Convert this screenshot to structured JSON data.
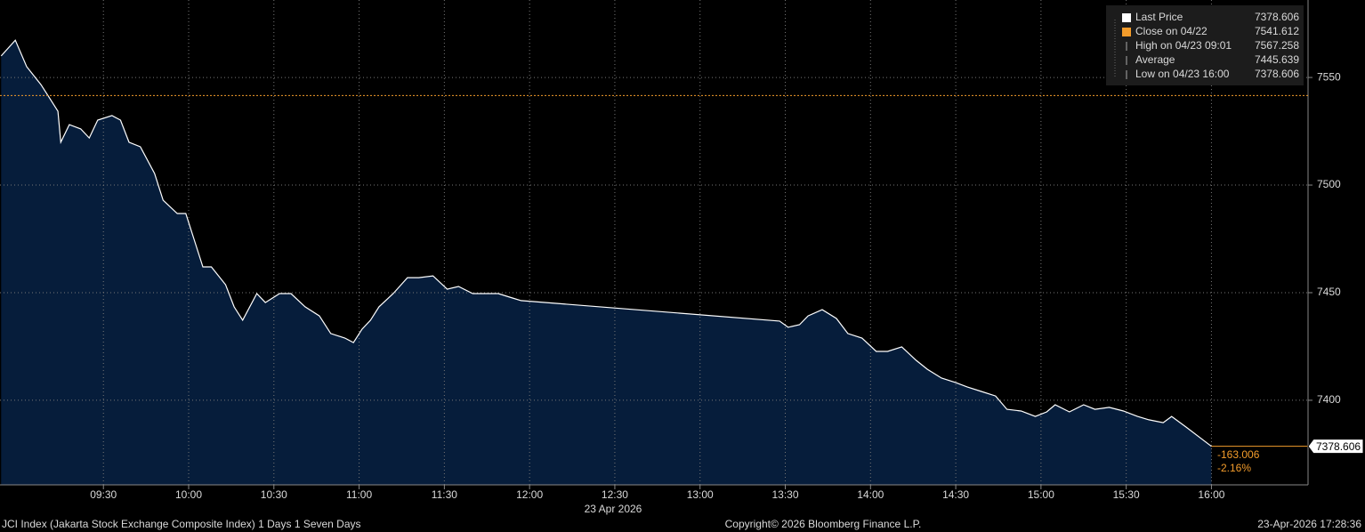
{
  "chart_data": {
    "type": "area",
    "title": "JCI Index (Jakarta Stock Exchange Composite Index) 1 Days 1 Seven Days",
    "x_label": "23 Apr 2026",
    "copyright": "Copyright© 2026 Bloomberg Finance L.P.",
    "timestamp": "23-Apr-2026 17:28:36",
    "xlim": [
      533.6,
      994
    ],
    "ylim": [
      7360.7,
      7586
    ],
    "xticks": [
      {
        "value": 570,
        "label": "09:30"
      },
      {
        "value": 600,
        "label": "10:00"
      },
      {
        "value": 630,
        "label": "10:30"
      },
      {
        "value": 660,
        "label": "11:00"
      },
      {
        "value": 690,
        "label": "11:30"
      },
      {
        "value": 720,
        "label": "12:00"
      },
      {
        "value": 750,
        "label": "12:30"
      },
      {
        "value": 780,
        "label": "13:00"
      },
      {
        "value": 810,
        "label": "13:30"
      },
      {
        "value": 840,
        "label": "14:00"
      },
      {
        "value": 870,
        "label": "14:30"
      },
      {
        "value": 900,
        "label": "15:00"
      },
      {
        "value": 930,
        "label": "15:30"
      },
      {
        "value": 960,
        "label": "16:00"
      }
    ],
    "yticks": [
      7400,
      7450,
      7500,
      7550
    ],
    "grid": true,
    "line_color": "#ffffff",
    "fill_color": "#061d3b",
    "close_color": "#f39c2b",
    "close": 7541.612,
    "last_price": 7378.606,
    "annotations": [
      "-163.006",
      "-2.16%"
    ],
    "legend": [
      {
        "label": "Last Price",
        "value": 7378.606
      },
      {
        "label": "Close on 04/22",
        "value": 7541.612
      },
      {
        "label": "High on 04/23 09:01",
        "value": 7567.258
      },
      {
        "label": "Average",
        "value": 7445.639
      },
      {
        "label": "Low on 04/23 16:00",
        "value": 7378.606
      }
    ],
    "x": [
      534,
      539,
      543,
      548,
      551,
      554,
      555,
      558,
      562,
      565,
      568,
      573,
      576,
      579,
      583,
      588,
      591,
      596,
      599,
      602,
      605,
      608,
      613,
      616,
      619,
      624,
      627,
      632,
      636,
      641,
      646,
      650,
      655,
      658,
      661,
      664,
      667,
      672,
      677,
      681,
      686,
      691,
      695,
      700,
      705,
      709,
      714,
      717,
      808,
      811,
      815,
      818,
      823,
      828,
      832,
      837,
      842,
      846,
      851,
      856,
      860,
      865,
      870,
      874,
      879,
      884,
      888,
      893,
      898,
      902,
      905,
      910,
      915,
      919,
      924,
      929,
      934,
      938,
      943,
      946,
      951,
      960
    ],
    "values": [
      7560.0,
      7567.3,
      7555.0,
      7546.7,
      7540.5,
      7534.3,
      7519.9,
      7528.1,
      7526.1,
      7521.9,
      7530.2,
      7532.3,
      7530.2,
      7519.9,
      7517.8,
      7505.4,
      7493.0,
      7486.8,
      7486.8,
      7474.4,
      7462.0,
      7462.0,
      7453.7,
      7443.4,
      7437.2,
      7449.6,
      7445.4,
      7449.6,
      7449.6,
      7443.4,
      7439.2,
      7431.0,
      7428.9,
      7426.8,
      7433.0,
      7437.2,
      7443.4,
      7449.6,
      7457.0,
      7457.0,
      7457.8,
      7451.6,
      7452.9,
      7449.6,
      7449.6,
      7449.6,
      7447.5,
      7446.3,
      7436.8,
      7433.9,
      7435.1,
      7439.2,
      7442.1,
      7438.0,
      7431.0,
      7428.9,
      7422.7,
      7422.7,
      7424.8,
      7418.6,
      7414.4,
      7410.3,
      7408.2,
      7406.2,
      7404.1,
      7402.0,
      7395.8,
      7395.0,
      7392.5,
      7394.6,
      7397.9,
      7394.6,
      7397.9,
      7395.8,
      7396.7,
      7395.0,
      7392.5,
      7390.9,
      7389.6,
      7392.5,
      7387.6,
      7378.6
    ]
  }
}
